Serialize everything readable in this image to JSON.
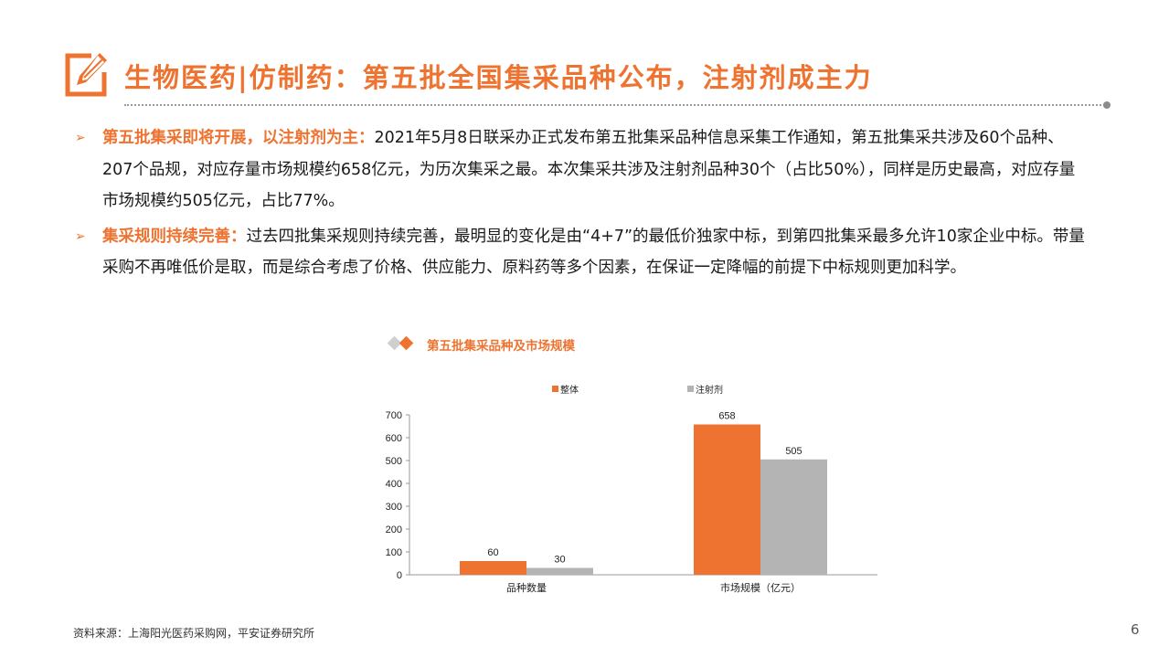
{
  "header": {
    "title": "生物医药|仿制药：第五批全国集采品种公布，注射剂成主力",
    "icon": "edit-pencil-icon"
  },
  "bullets": [
    {
      "lead": "第五批集采即将开展，以注射剂为主：",
      "text": "2021年5月8日联采办正式发布第五批集采品种信息采集工作通知，第五批集采共涉及60个品种、207个品规，对应存量市场规模约658亿元，为历次集采之最。本次集采共涉及注射剂品种30个（占比50%），同样是历史最高，对应存量市场规模约505亿元，占比77%。"
    },
    {
      "lead": "集采规则持续完善：",
      "text": "过去四批集采规则持续完善，最明显的变化是由“4+7”的最低价独家中标，到第四批集采最多允许10家企业中标。带量采购不再唯低价是取，而是综合考虑了价格、供应能力、原料药等多个因素，在保证一定降幅的前提下中标规则更加科学。"
    }
  ],
  "chart_data": {
    "type": "bar",
    "title": "第五批集采品种及市场规模",
    "categories": [
      "品种数量",
      "市场规模（亿元）"
    ],
    "series": [
      {
        "name": "整体",
        "values": [
          60,
          658
        ],
        "color": "#ee7330"
      },
      {
        "name": "注射剂",
        "values": [
          30,
          505
        ],
        "color": "#b4b4b4"
      }
    ],
    "ylim": [
      0,
      700
    ],
    "yticks": [
      0,
      100,
      200,
      300,
      400,
      500,
      600,
      700
    ],
    "legend_position": "top",
    "grid": false
  },
  "footer": {
    "source": "资料来源：上海阳光医药采购网，平安证券研究所",
    "page_number": "6"
  },
  "colors": {
    "accent": "#ee7330",
    "secondary": "#b4b4b4"
  }
}
